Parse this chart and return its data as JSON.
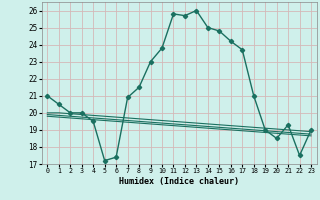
{
  "xlabel": "Humidex (Indice chaleur)",
  "background_color": "#cff0eb",
  "grid_color": "#d4b8b8",
  "line_color": "#1a7060",
  "hours": [
    0,
    1,
    2,
    3,
    4,
    5,
    6,
    7,
    8,
    9,
    10,
    11,
    12,
    13,
    14,
    15,
    16,
    17,
    18,
    19,
    20,
    21,
    22,
    23
  ],
  "humidex": [
    21.0,
    20.5,
    20.0,
    20.0,
    19.5,
    17.2,
    17.4,
    20.9,
    21.5,
    23.0,
    23.8,
    25.8,
    25.7,
    26.0,
    25.0,
    24.8,
    24.2,
    23.7,
    21.0,
    19.0,
    18.5,
    19.3,
    17.5,
    19.0
  ],
  "flat1": [
    20.0,
    20.0,
    19.95,
    19.9,
    19.85,
    19.8,
    19.75,
    19.7,
    19.65,
    19.6,
    19.55,
    19.5,
    19.45,
    19.4,
    19.35,
    19.3,
    19.25,
    19.2,
    19.15,
    19.1,
    19.05,
    19.0,
    18.95,
    18.9
  ],
  "flat2": [
    19.9,
    19.85,
    19.8,
    19.75,
    19.7,
    19.65,
    19.6,
    19.55,
    19.5,
    19.45,
    19.4,
    19.35,
    19.3,
    19.25,
    19.2,
    19.15,
    19.1,
    19.05,
    19.0,
    18.95,
    18.9,
    18.85,
    18.8,
    18.75
  ],
  "flat3": [
    19.8,
    19.75,
    19.7,
    19.65,
    19.6,
    19.55,
    19.5,
    19.45,
    19.4,
    19.35,
    19.3,
    19.25,
    19.2,
    19.15,
    19.1,
    19.05,
    19.0,
    18.95,
    18.9,
    18.85,
    18.8,
    18.75,
    18.7,
    18.65
  ],
  "ylim": [
    17,
    26.5
  ],
  "yticks": [
    17,
    18,
    19,
    20,
    21,
    22,
    23,
    24,
    25,
    26
  ],
  "xticks": [
    0,
    1,
    2,
    3,
    4,
    5,
    6,
    7,
    8,
    9,
    10,
    11,
    12,
    13,
    14,
    15,
    16,
    17,
    18,
    19,
    20,
    21,
    22,
    23
  ]
}
